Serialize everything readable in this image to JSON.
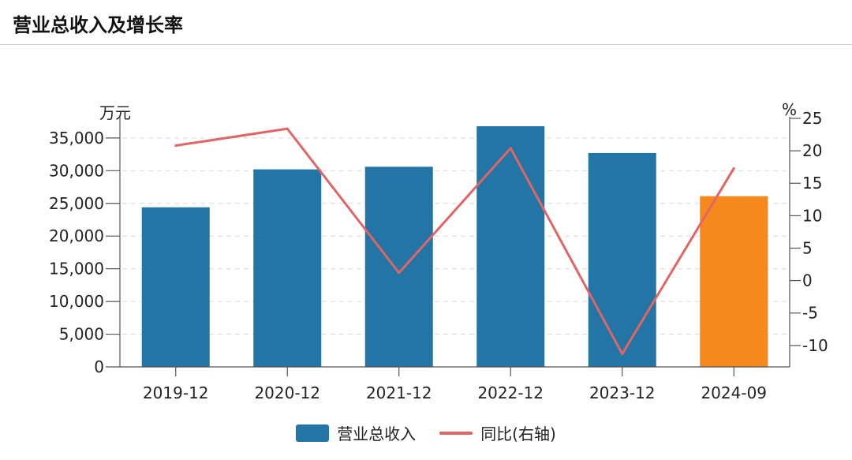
{
  "header": {
    "title": "营业总收入及增长率"
  },
  "chart_data": {
    "type": "bar",
    "categories": [
      "2019-12",
      "2020-12",
      "2021-12",
      "2022-12",
      "2023-12",
      "2024-09"
    ],
    "series": [
      {
        "name": "营业总收入",
        "type": "bar",
        "axis": "left",
        "values": [
          24400,
          30200,
          30600,
          36800,
          32700,
          26100
        ],
        "colors": [
          "#2275a4",
          "#2275a4",
          "#2275a4",
          "#2275a4",
          "#2275a4",
          "#f5891d"
        ]
      },
      {
        "name": "同比(右轴)",
        "type": "line",
        "axis": "right",
        "values": [
          20.8,
          23.4,
          1.2,
          20.4,
          -11.3,
          17.3
        ],
        "color": "#e06565"
      }
    ],
    "y_left": {
      "label": "万元",
      "ylim": [
        0,
        38000
      ],
      "ticks": [
        0,
        5000,
        10000,
        15000,
        20000,
        25000,
        30000,
        35000
      ],
      "tick_labels": [
        "0",
        "5,000",
        "10,000",
        "15,000",
        "20,000",
        "25,000",
        "30,000",
        "35,000"
      ]
    },
    "y_right": {
      "label": "%",
      "ylim": [
        -13.3,
        25
      ],
      "ticks": [
        -10,
        -5,
        0,
        5,
        10,
        15,
        20,
        25
      ],
      "tick_labels": [
        "-10",
        "-5",
        "0",
        "5",
        "10",
        "15",
        "20",
        "25"
      ]
    },
    "grid": true,
    "legend_position": "bottom-center"
  }
}
